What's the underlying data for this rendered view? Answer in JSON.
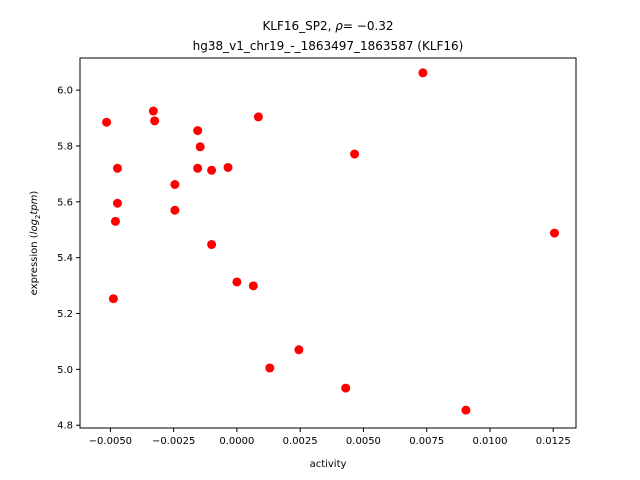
{
  "chart_data": {
    "type": "scatter",
    "title_line1_prefix": "KLF16_SP2, ",
    "title_line1_rho_symbol": "ρ",
    "title_line1_rho_value": "= −0.32",
    "title_line2": "hg38_v1_chr19_-_1863497_1863587 (KLF16)",
    "xlabel": "activity",
    "ylabel_prefix": "expression (",
    "ylabel_log": "log",
    "ylabel_sub": "2",
    "ylabel_tpm": "tpm",
    "ylabel_suffix": ")",
    "xlim": [
      -0.0062,
      0.0134
    ],
    "ylim": [
      4.79,
      6.115
    ],
    "grid": false,
    "marker_color": "#ff0000",
    "xticks": [
      {
        "value": -0.005,
        "label": "−0.0050"
      },
      {
        "value": -0.0025,
        "label": "−0.0025"
      },
      {
        "value": 0.0,
        "label": "0.0000"
      },
      {
        "value": 0.0025,
        "label": "0.0025"
      },
      {
        "value": 0.005,
        "label": "0.0050"
      },
      {
        "value": 0.0075,
        "label": "0.0075"
      },
      {
        "value": 0.01,
        "label": "0.0100"
      },
      {
        "value": 0.0125,
        "label": "0.0125"
      }
    ],
    "yticks": [
      {
        "value": 4.8,
        "label": "4.8"
      },
      {
        "value": 5.0,
        "label": "5.0"
      },
      {
        "value": 5.2,
        "label": "5.2"
      },
      {
        "value": 5.4,
        "label": "5.4"
      },
      {
        "value": 5.6,
        "label": "5.6"
      },
      {
        "value": 5.8,
        "label": "5.8"
      },
      {
        "value": 6.0,
        "label": "6.0"
      }
    ],
    "points": [
      {
        "x": -0.00515,
        "y": 5.885
      },
      {
        "x": -0.00472,
        "y": 5.72
      },
      {
        "x": -0.00472,
        "y": 5.595
      },
      {
        "x": -0.0048,
        "y": 5.53
      },
      {
        "x": -0.00488,
        "y": 5.253
      },
      {
        "x": -0.0033,
        "y": 5.925
      },
      {
        "x": -0.00325,
        "y": 5.89
      },
      {
        "x": -0.00245,
        "y": 5.662
      },
      {
        "x": -0.00245,
        "y": 5.57
      },
      {
        "x": -0.00155,
        "y": 5.855
      },
      {
        "x": -0.00145,
        "y": 5.797
      },
      {
        "x": -0.00155,
        "y": 5.72
      },
      {
        "x": -0.001,
        "y": 5.713
      },
      {
        "x": -0.001,
        "y": 5.447
      },
      {
        "x": -0.00035,
        "y": 5.723
      },
      {
        "x": 0.0,
        "y": 5.313
      },
      {
        "x": 0.00065,
        "y": 5.299
      },
      {
        "x": 0.00085,
        "y": 5.904
      },
      {
        "x": 0.0013,
        "y": 5.005
      },
      {
        "x": 0.00245,
        "y": 5.07
      },
      {
        "x": 0.0043,
        "y": 4.933
      },
      {
        "x": 0.00465,
        "y": 5.771
      },
      {
        "x": 0.00735,
        "y": 6.062
      },
      {
        "x": 0.00905,
        "y": 4.854
      },
      {
        "x": 0.01255,
        "y": 5.488
      }
    ]
  }
}
